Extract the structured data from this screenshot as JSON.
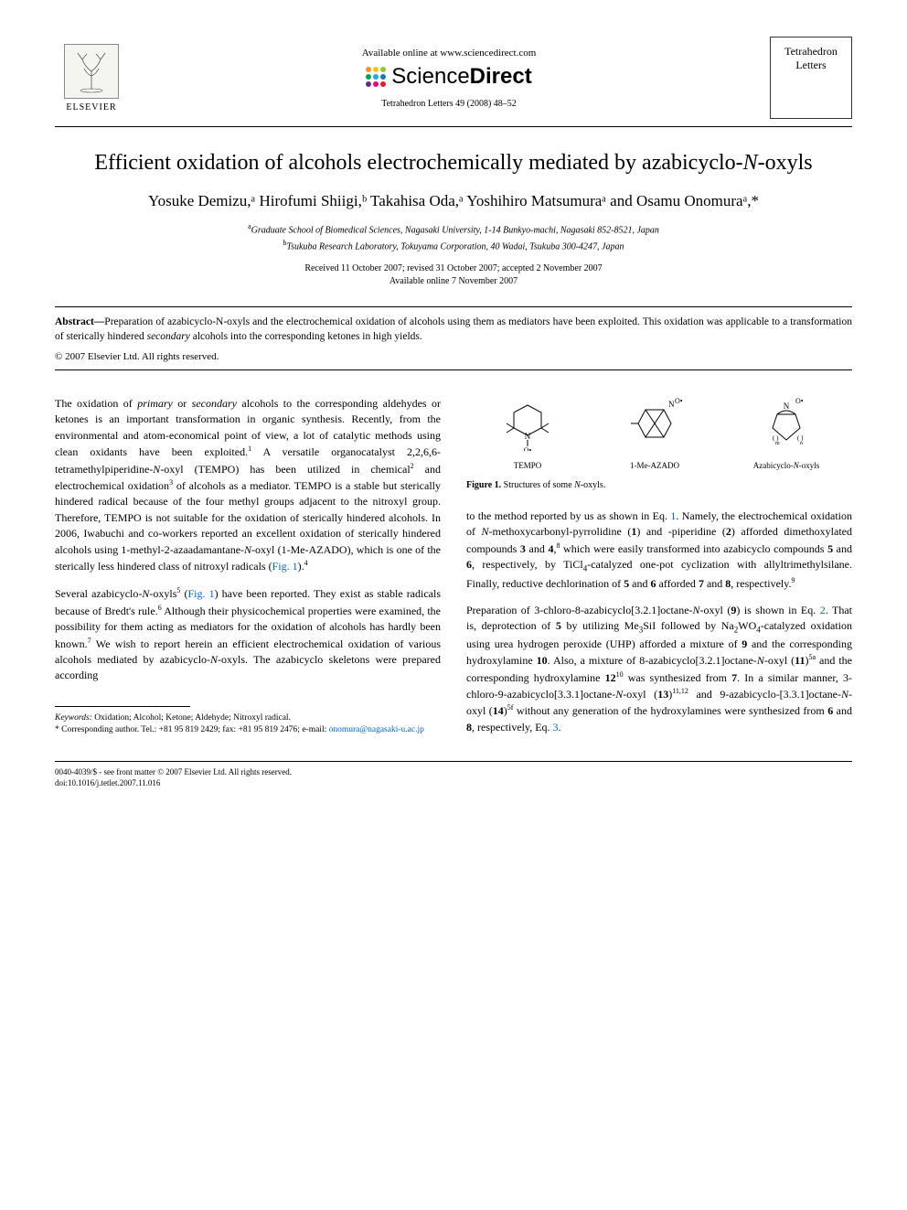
{
  "header": {
    "elsevier_label": "ELSEVIER",
    "available_text": "Available online at www.sciencedirect.com",
    "sd_brand_light": "Science",
    "sd_brand_bold": "Direct",
    "journal_ref": "Tetrahedron Letters 49 (2008) 48–52",
    "journal_box_line1": "Tetrahedron",
    "journal_box_line2": "Letters",
    "sd_dot_colors": [
      "#f7931e",
      "#ffc20e",
      "#8dc63f",
      "#00a651",
      "#27aae1",
      "#1c75bc",
      "#662d91",
      "#ec008c",
      "#ed1c24"
    ]
  },
  "title_plain": "Efficient oxidation of alcohols electrochemically mediated by azabicyclo-",
  "title_ital": "N",
  "title_tail": "-oxyls",
  "authors_line": "Yosuke Demizu,ᵃ Hirofumi Shiigi,ᵇ Takahisa Oda,ᵃ Yoshihiro Matsumuraᵃ and Osamu Onomuraᵃ,*",
  "affiliations": {
    "a": "Graduate School of Biomedical Sciences, Nagasaki University, 1-14 Bunkyo-machi, Nagasaki 852-8521, Japan",
    "b": "Tsukuba Research Laboratory, Tokuyama Corporation, 40 Wadai, Tsukuba 300-4247, Japan"
  },
  "dates_line1": "Received 11 October 2007; revised 31 October 2007; accepted 2 November 2007",
  "dates_line2": "Available online 7 November 2007",
  "abstract": {
    "label": "Abstract—",
    "text_before_ital": "Preparation of azabicyclo-N-oxyls and the electrochemical oxidation of alcohols using them as mediators have been exploited. This oxidation was applicable to a transformation of sterically hindered ",
    "ital_word": "secondary",
    "text_after_ital": " alcohols into the corresponding ketones in high yields.",
    "copyright": "© 2007 Elsevier Ltd. All rights reserved."
  },
  "left_col": {
    "p1": "The oxidation of primary or secondary alcohols to the corresponding aldehydes or ketones is an important transformation in organic synthesis. Recently, from the environmental and atom-economical point of view, a lot of catalytic methods using clean oxidants have been exploited.¹ A versatile organocatalyst 2,2,6,6-tetramethylpiperidine-N-oxyl (TEMPO) has been utilized in chemical² and electrochemical oxidation³ of alcohols as a mediator. TEMPO is a stable but sterically hindered radical because of the four methyl groups adjacent to the nitroxyl group. Therefore, TEMPO is not suitable for the oxidation of sterically hindered alcohols. In 2006, Iwabuchi and co-workers reported an excellent oxidation of sterically hindered alcohols using 1-methyl-2-azaadamantane-N-oxyl (1-Me-AZADO), which is one of the sterically less hindered class of nitroxyl radicals (Fig. 1).⁴",
    "p2": "Several azabicyclo-N-oxyls⁵ (Fig. 1) have been reported. They exist as stable radicals because of Bredt's rule.⁶ Although their physicochemical properties were examined, the possibility for them acting as mediators for the oxidation of alcohols has hardly been known.⁷ We wish to report herein an efficient electrochemical oxidation of various alcohols mediated by azabicyclo-N-oxyls. The azabicyclo skeletons were prepared according"
  },
  "right_col": {
    "figure1": {
      "labels": [
        "TEMPO",
        "1-Me-AZADO",
        "Azabicyclo-N-oxyls"
      ],
      "caption_bold": "Figure 1.",
      "caption_text": " Structures of some ",
      "caption_ital": "N",
      "caption_tail": "-oxyls."
    },
    "p1": "to the method reported by us as shown in Eq. 1. Namely, the electrochemical oxidation of N-methoxycarbonyl-pyrrolidine (1) and -piperidine (2) afforded dimethoxylated compounds 3 and 4,⁸ which were easily transformed into azabicyclo compounds 5 and 6, respectively, by TiCl₄-catalyzed one-pot cyclization with allyltrimethylsilane. Finally, reductive dechlorination of 5 and 6 afforded 7 and 8, respectively.⁹",
    "p2": "Preparation of 3-chloro-8-azabicyclo[3.2.1]octane-N-oxyl (9) is shown in Eq. 2. That is, deprotection of 5 by utilizing Me₃SiI followed by Na₂WO₄-catalyzed oxidation using urea hydrogen peroxide (UHP) afforded a mixture of 9 and the corresponding hydroxylamine 10. Also, a mixture of 8-azabicyclo[3.2.1]octane-N-oxyl (11)⁵ᵃ and the corresponding hydroxylamine 12¹⁰ was synthesized from 7. In a similar manner, 3-chloro-9-azabicyclo[3.3.1]octane-N-oxyl (13)¹¹,¹² and 9-azabicyclo-[3.3.1]octane-N-oxyl (14)⁵ᶠ without any generation of the hydroxylamines were synthesized from 6 and 8, respectively, Eq. 3."
  },
  "footnotes": {
    "keywords_label": "Keywords:",
    "keywords": " Oxidation; Alcohol; Ketone; Aldehyde; Nitroxyl radical.",
    "corresponding": "* Corresponding author. Tel.: +81 95 819 2429; fax: +81 95 819 2476; e-mail: ",
    "email": "onomura@nagasaki-u.ac.jp"
  },
  "bottom": {
    "line1": "0040-4039/$ - see front matter © 2007 Elsevier Ltd. All rights reserved.",
    "line2": "doi:10.1016/j.tetlet.2007.11.016"
  }
}
